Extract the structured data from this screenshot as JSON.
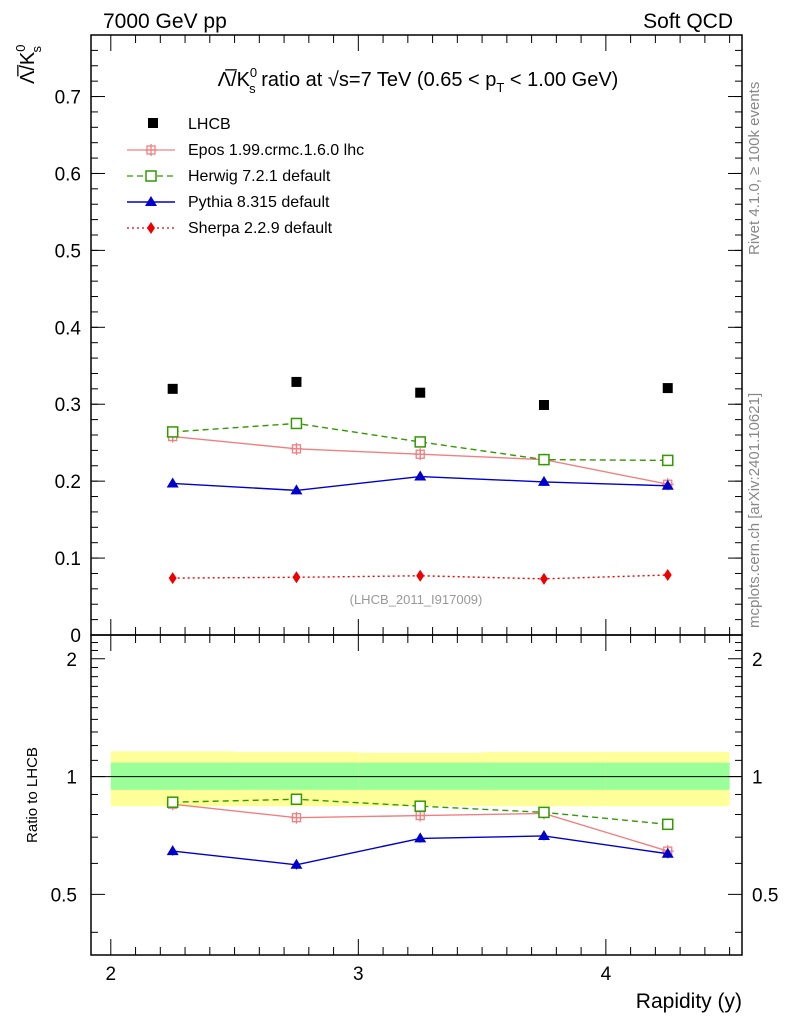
{
  "header": {
    "left": "7000 GeV pp",
    "right": "Soft QCD"
  },
  "side_text": {
    "rivet": "Rivet 4.1.0, ≥ 100k events",
    "mcplots": "mcplots.cern.ch [arXiv:2401.10621]"
  },
  "watermark": "(LHCB_2011_I917009)",
  "chart_data": {
    "type": "scatter",
    "title": {
      "prefix": "Λ̅/K",
      "sup": "0",
      "sub": "s",
      "mid": " ratio at √s=7 TeV (0.65 < p",
      "sub2": "T",
      "suffix": " < 1.00 GeV)"
    },
    "ylabel": {
      "main": "Λ̅/K",
      "sup": "0",
      "sub": "s"
    },
    "xlabel": "Rapidity (y)",
    "ratio_ylabel": "Ratio to LHCB",
    "xlim": [
      1.92,
      4.55
    ],
    "ylim": [
      0,
      0.78
    ],
    "ratio_ylim": [
      0.35,
      2.3
    ],
    "x": [
      2.25,
      2.75,
      3.25,
      3.75,
      4.25
    ],
    "bin_edges": [
      2.0,
      2.5,
      3.0,
      3.5,
      4.0,
      4.5
    ],
    "yticks": [
      0,
      0.1,
      0.2,
      0.3,
      0.4,
      0.5,
      0.6,
      0.7
    ],
    "ytick_labels": [
      "0",
      "0.1",
      "0.2",
      "0.3",
      "0.4",
      "0.5",
      "0.6",
      "0.7"
    ],
    "xticks": [
      2,
      3,
      4
    ],
    "xtick_labels": [
      "2",
      "3",
      "4"
    ],
    "ratio_yticks": [
      0.5,
      1,
      2
    ],
    "ratio_ytick_labels": [
      "0.5",
      "1",
      "2"
    ],
    "data": {
      "name": "LHCB",
      "values": [
        0.32,
        0.329,
        0.315,
        0.299,
        0.321
      ],
      "color": "#000000"
    },
    "bands": {
      "inner_lo": [
        0.925,
        0.925,
        0.925,
        0.925,
        0.925
      ],
      "inner_hi": [
        1.085,
        1.085,
        1.085,
        1.085,
        1.085
      ],
      "outer_lo": [
        0.84,
        0.84,
        0.84,
        0.84,
        0.84
      ],
      "outer_hi": [
        1.16,
        1.155,
        1.15,
        1.155,
        1.155
      ],
      "inner_color": "#99ff99",
      "outer_color": "#ffff99"
    },
    "series": [
      {
        "name": "Epos 1.99.crmc.1.6.0 lhc",
        "values": [
          0.258,
          0.242,
          0.235,
          0.228,
          0.196
        ],
        "ratio": [
          0.85,
          0.785,
          0.795,
          0.805,
          0.645
        ],
        "err": [
          0.006,
          0.006,
          0.005,
          0.005,
          0.004
        ],
        "color": "#f08080",
        "dash": "",
        "marker": "cross"
      },
      {
        "name": "Herwig 7.2.1 default",
        "values": [
          0.264,
          0.275,
          0.251,
          0.228,
          0.227
        ],
        "ratio": [
          0.86,
          0.875,
          0.84,
          0.81,
          0.755
        ],
        "err": [
          0.005,
          0.006,
          0.005,
          0.005,
          0.005
        ],
        "color": "#339900",
        "dash": "6,4",
        "marker": "open-square"
      },
      {
        "name": "Pythia 8.315 default",
        "values": [
          0.197,
          0.188,
          0.206,
          0.199,
          0.194
        ],
        "ratio": [
          0.645,
          0.595,
          0.695,
          0.705,
          0.635
        ],
        "err": [
          0.005,
          0.005,
          0.005,
          0.005,
          0.005
        ],
        "color": "#0000cc",
        "dash": "",
        "marker": "triangle"
      },
      {
        "name": "Sherpa 2.2.9 default",
        "values": [
          0.074,
          0.075,
          0.077,
          0.073,
          0.078
        ],
        "color": "#ee0000",
        "dash": "2,3",
        "marker": "diamond"
      }
    ]
  }
}
